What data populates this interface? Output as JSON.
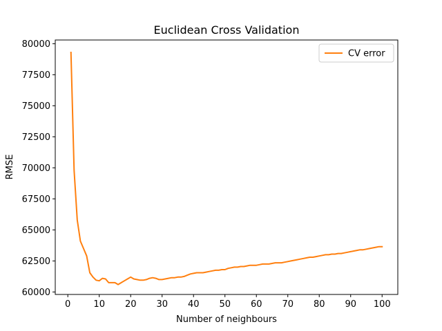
{
  "chart_data": {
    "type": "line",
    "title": "Euclidean Cross Validation",
    "xlabel": "Number of neighbours",
    "ylabel": "RMSE",
    "xlim": [
      -4,
      105
    ],
    "ylim": [
      59800,
      80300
    ],
    "xticks": [
      0,
      10,
      20,
      30,
      40,
      50,
      60,
      70,
      80,
      90,
      100
    ],
    "yticks": [
      60000,
      62500,
      65000,
      67500,
      70000,
      72500,
      75000,
      77500,
      80000
    ],
    "grid": false,
    "legend_position": "top-right",
    "series": [
      {
        "name": "CV error",
        "color": "#ff7f0e",
        "x": [
          1,
          2,
          3,
          4,
          5,
          6,
          7,
          8,
          9,
          10,
          11,
          12,
          13,
          14,
          15,
          16,
          17,
          18,
          19,
          20,
          21,
          22,
          23,
          24,
          25,
          26,
          27,
          28,
          29,
          30,
          31,
          32,
          33,
          34,
          35,
          36,
          37,
          38,
          39,
          40,
          41,
          42,
          43,
          44,
          45,
          46,
          47,
          48,
          49,
          50,
          51,
          52,
          53,
          54,
          55,
          56,
          57,
          58,
          59,
          60,
          61,
          62,
          63,
          64,
          65,
          66,
          67,
          68,
          69,
          70,
          71,
          72,
          73,
          74,
          75,
          76,
          77,
          78,
          79,
          80,
          81,
          82,
          83,
          84,
          85,
          86,
          87,
          88,
          89,
          90,
          91,
          92,
          93,
          94,
          95,
          96,
          97,
          98,
          99,
          100
        ],
        "values": [
          79300,
          69800,
          65800,
          64100,
          63500,
          62900,
          61550,
          61200,
          60950,
          60900,
          61100,
          61050,
          60750,
          60750,
          60750,
          60600,
          60750,
          60900,
          61050,
          61200,
          61050,
          61000,
          60950,
          60950,
          61000,
          61100,
          61150,
          61100,
          61000,
          61000,
          61050,
          61100,
          61150,
          61150,
          61200,
          61200,
          61250,
          61350,
          61450,
          61500,
          61550,
          61550,
          61550,
          61600,
          61650,
          61700,
          61750,
          61750,
          61800,
          61800,
          61900,
          61950,
          62000,
          62000,
          62050,
          62050,
          62100,
          62150,
          62150,
          62150,
          62200,
          62250,
          62250,
          62250,
          62300,
          62350,
          62350,
          62350,
          62400,
          62450,
          62500,
          62550,
          62600,
          62650,
          62700,
          62750,
          62800,
          62800,
          62850,
          62900,
          62950,
          63000,
          63000,
          63050,
          63050,
          63100,
          63100,
          63150,
          63200,
          63250,
          63300,
          63350,
          63400,
          63400,
          63450,
          63500,
          63550,
          63600,
          63650,
          63650
        ]
      }
    ]
  }
}
